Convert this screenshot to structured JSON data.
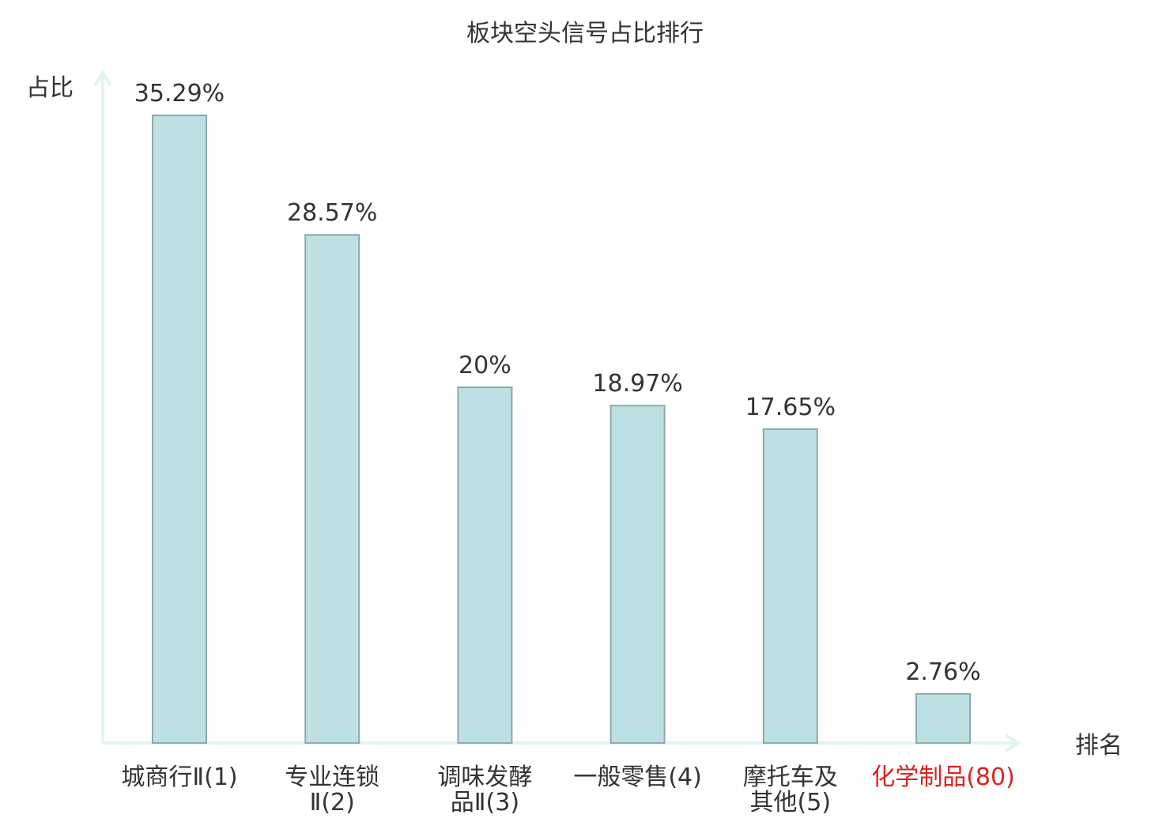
{
  "chart_data": {
    "type": "bar",
    "title": "板块空头信号占比排行",
    "ylabel": "占比",
    "xlabel": "排名",
    "categories": [
      [
        "城商行Ⅱ(1)"
      ],
      [
        "专业连锁",
        "Ⅱ(2)"
      ],
      [
        "调味发酵",
        "品Ⅱ(3)"
      ],
      [
        "一般零售(4)"
      ],
      [
        "摩托车及",
        "其他(5)"
      ],
      [
        "化学制品(80)"
      ]
    ],
    "values": [
      35.29,
      28.57,
      20,
      18.97,
      17.65,
      2.76
    ],
    "value_labels": [
      "35.29%",
      "28.57%",
      "20%",
      "18.97%",
      "17.65%",
      "2.76%"
    ],
    "highlight_index": 5,
    "ylim": [
      0,
      40
    ],
    "grid": false,
    "legend": "none",
    "colors": {
      "bar_fill": "#bde0e3",
      "bar_stroke": "#8ea9ad",
      "axis": "#e3f3f2",
      "text": "#333333",
      "highlight": "#e02020"
    }
  }
}
